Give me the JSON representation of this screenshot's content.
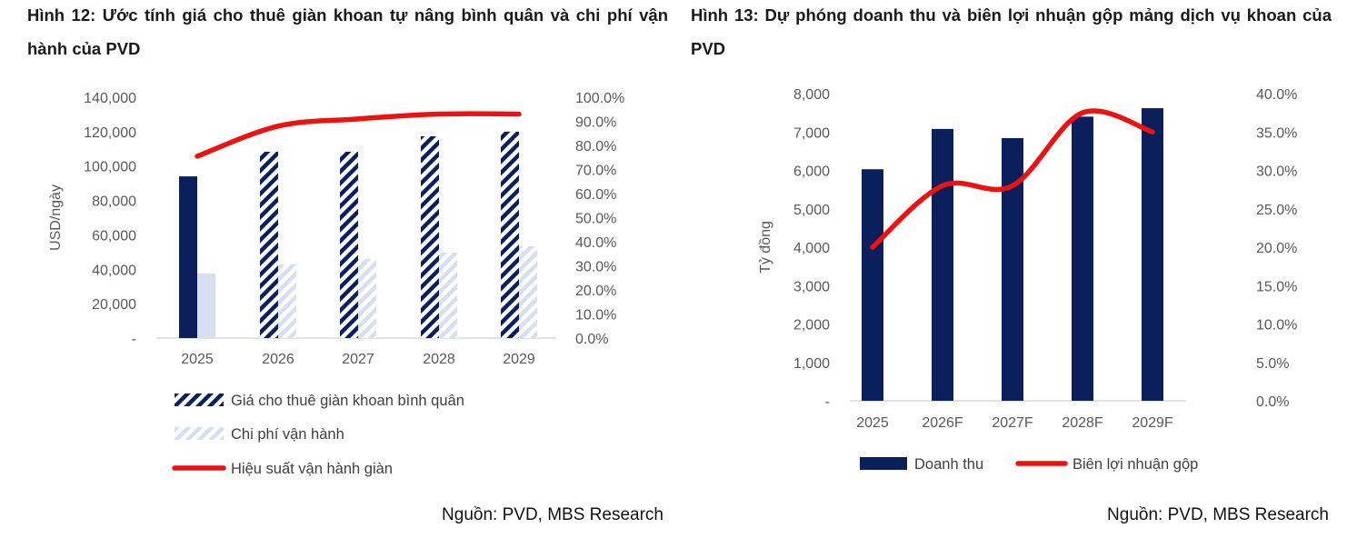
{
  "chart_data": [
    {
      "type": "bar",
      "title": "Hình 12: Ước tính giá cho thuê giàn khoan tự nâng bình quân và chi phí vận hành của PVD",
      "source": "Nguồn: PVD, MBS Research",
      "ylabel": "USD/ngày",
      "categories": [
        "2025",
        "2026",
        "2027",
        "2028",
        "2029"
      ],
      "ylim": [
        0,
        140000
      ],
      "y_ticks": [
        "-",
        "20,000",
        "40,000",
        "60,000",
        "80,000",
        "100,000",
        "120,000",
        "140,000"
      ],
      "y2lim": [
        0,
        100
      ],
      "y2_ticks": [
        "0.0%",
        "10.0%",
        "20.0%",
        "30.0%",
        "40.0%",
        "50.0%",
        "60.0%",
        "70.0%",
        "80.0%",
        "90.0%",
        "100.0%"
      ],
      "series": [
        {
          "name": "Giá cho thuê giàn khoan bình quân",
          "kind": "bar",
          "axis": "left",
          "values": [
            94000,
            108300,
            108300,
            117300,
            120000
          ],
          "color": "#0b1f5c"
        },
        {
          "name": "Chi phí vận hành",
          "kind": "bar",
          "axis": "left",
          "values": [
            37500,
            42800,
            46000,
            49700,
            53400
          ],
          "color": "#d6deef"
        },
        {
          "name": "Hiệu suất vận hành giàn",
          "kind": "line",
          "axis": "right",
          "values": [
            75.5,
            88,
            91,
            93,
            93
          ],
          "color": "#ee1111"
        }
      ],
      "legend": "bottom"
    },
    {
      "type": "bar",
      "title": "Hình 13: Dự phóng doanh thu và biên lợi nhuận gộp mảng dịch vụ khoan của PVD",
      "source": "Nguồn: PVD, MBS Research",
      "ylabel": "Tỷ đồng",
      "categories": [
        "2025",
        "2026F",
        "2027F",
        "2028F",
        "2029F"
      ],
      "ylim": [
        0,
        8000
      ],
      "y_ticks": [
        "-",
        "1,000",
        "2,000",
        "3,000",
        "4,000",
        "5,000",
        "6,000",
        "7,000",
        "8,000"
      ],
      "y2lim": [
        0,
        40
      ],
      "y2_ticks": [
        "0.0%",
        "5.0%",
        "10.0%",
        "15.0%",
        "20.0%",
        "25.0%",
        "30.0%",
        "35.0%",
        "40.0%"
      ],
      "series": [
        {
          "name": "Doanh thu",
          "kind": "bar",
          "axis": "left",
          "values": [
            6030,
            7080,
            6840,
            7400,
            7620
          ],
          "color": "#0b1f5c"
        },
        {
          "name": "Biên lợi nhuận gộp",
          "kind": "line",
          "axis": "right",
          "values": [
            20,
            28,
            28,
            37.5,
            35
          ],
          "color": "#ee1111"
        }
      ],
      "legend": "bottom"
    }
  ]
}
